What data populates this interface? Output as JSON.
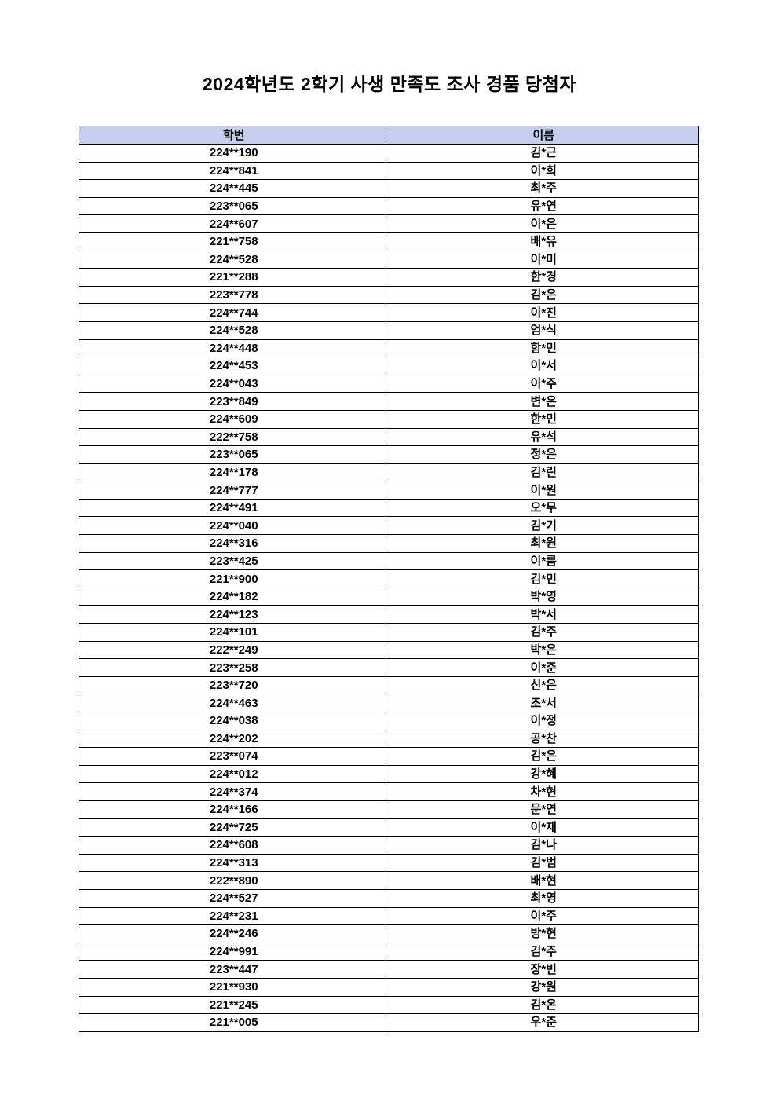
{
  "page": {
    "title": "2024학년도 2학기 사생 만족도 조사 경품 당첨자"
  },
  "table": {
    "header_bg_color": "#c3cfec",
    "border_color": "#000000",
    "columns": [
      {
        "key": "student_id",
        "label": "학번"
      },
      {
        "key": "name",
        "label": "이름"
      }
    ],
    "rows": [
      {
        "student_id": "224**190",
        "name": "김*근"
      },
      {
        "student_id": "224**841",
        "name": "이*희"
      },
      {
        "student_id": "224**445",
        "name": "최*주"
      },
      {
        "student_id": "223**065",
        "name": "유*연"
      },
      {
        "student_id": "224**607",
        "name": "이*은"
      },
      {
        "student_id": "221**758",
        "name": "배*유"
      },
      {
        "student_id": "224**528",
        "name": "이*미"
      },
      {
        "student_id": "221**288",
        "name": "한*경"
      },
      {
        "student_id": "223**778",
        "name": "김*은"
      },
      {
        "student_id": "224**744",
        "name": "이*진"
      },
      {
        "student_id": "224**528",
        "name": "엄*식"
      },
      {
        "student_id": "224**448",
        "name": "함*민"
      },
      {
        "student_id": "224**453",
        "name": "이*서"
      },
      {
        "student_id": "224**043",
        "name": "이*주"
      },
      {
        "student_id": "223**849",
        "name": "변*은"
      },
      {
        "student_id": "224**609",
        "name": "한*민"
      },
      {
        "student_id": "222**758",
        "name": "유*석"
      },
      {
        "student_id": "223**065",
        "name": "정*은"
      },
      {
        "student_id": "224**178",
        "name": "김*린"
      },
      {
        "student_id": "224**777",
        "name": "이*원"
      },
      {
        "student_id": "224**491",
        "name": "오*무"
      },
      {
        "student_id": "224**040",
        "name": "김*기"
      },
      {
        "student_id": "224**316",
        "name": "최*원"
      },
      {
        "student_id": "223**425",
        "name": "이*름"
      },
      {
        "student_id": "221**900",
        "name": "김*민"
      },
      {
        "student_id": "224**182",
        "name": "박*영"
      },
      {
        "student_id": "224**123",
        "name": "박*서"
      },
      {
        "student_id": "224**101",
        "name": "김*주"
      },
      {
        "student_id": "222**249",
        "name": "박*은"
      },
      {
        "student_id": "223**258",
        "name": "이*준"
      },
      {
        "student_id": "223**720",
        "name": "신*은"
      },
      {
        "student_id": "224**463",
        "name": "조*서"
      },
      {
        "student_id": "224**038",
        "name": "이*정"
      },
      {
        "student_id": "224**202",
        "name": "공*찬"
      },
      {
        "student_id": "223**074",
        "name": "김*은"
      },
      {
        "student_id": "224**012",
        "name": "강*혜"
      },
      {
        "student_id": "224**374",
        "name": "차*현"
      },
      {
        "student_id": "224**166",
        "name": "문*연"
      },
      {
        "student_id": "224**725",
        "name": "이*재"
      },
      {
        "student_id": "224**608",
        "name": "김*나"
      },
      {
        "student_id": "224**313",
        "name": "김*범"
      },
      {
        "student_id": "222**890",
        "name": "배*현"
      },
      {
        "student_id": "224**527",
        "name": "최*영"
      },
      {
        "student_id": "224**231",
        "name": "이*주"
      },
      {
        "student_id": "224**246",
        "name": "방*현"
      },
      {
        "student_id": "224**991",
        "name": "김*주"
      },
      {
        "student_id": "223**447",
        "name": "장*빈"
      },
      {
        "student_id": "221**930",
        "name": "강*원"
      },
      {
        "student_id": "221**245",
        "name": "김*온"
      },
      {
        "student_id": "221**005",
        "name": "우*준"
      }
    ]
  }
}
